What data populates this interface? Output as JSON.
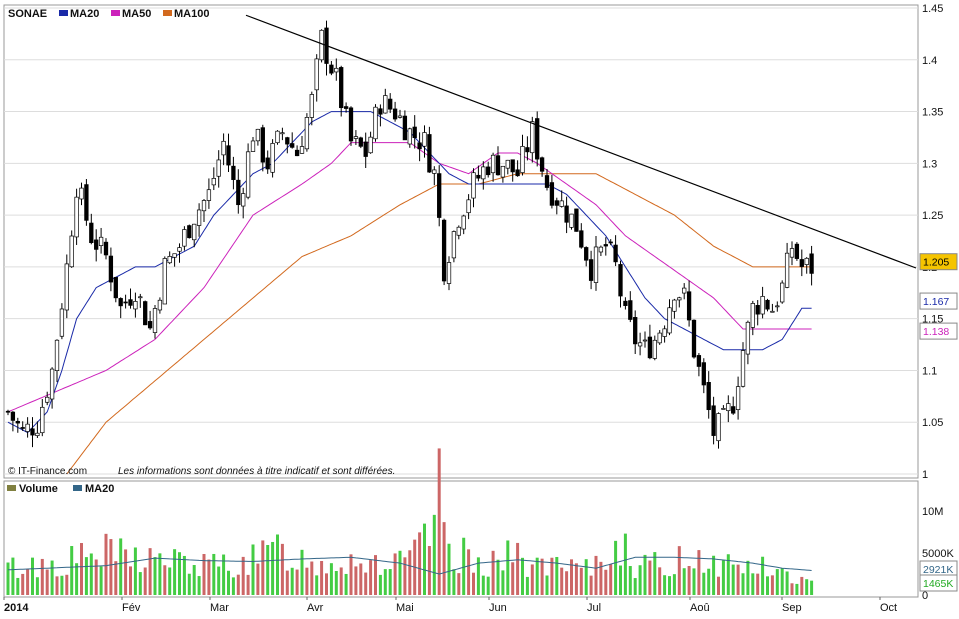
{
  "chart_data": [
    {
      "type": "candlestick",
      "title": "SONAE",
      "legend": [
        {
          "label": "SONAE",
          "color": "#000000"
        },
        {
          "label": "MA20",
          "color": "#1a2aa8"
        },
        {
          "label": "MA50",
          "color": "#cc22bb"
        },
        {
          "label": "MA100",
          "color": "#d2691e"
        }
      ],
      "y_ticks": [
        "1.45",
        "1.4",
        "1.35",
        "1.3",
        "1.25",
        "1.2",
        "1.15",
        "1.1",
        "1.05",
        "1"
      ],
      "ylim": [
        1.0,
        1.45
      ],
      "x_ticks": [
        "2014",
        "Fév",
        "Mar",
        "Avr",
        "Mai",
        "Jun",
        "Jul",
        "Aoû",
        "Sep",
        "Oct"
      ],
      "price_tags": [
        {
          "text": "1.205",
          "value": 1.205,
          "bg": "#f5c400",
          "fg": "#000000",
          "border": "#888888"
        },
        {
          "text": "1.167",
          "value": 1.167,
          "bg": "#ffffff",
          "fg": "#1a2aa8",
          "border": "#888888"
        },
        {
          "text": "1.138",
          "value": 1.138,
          "bg": "#ffffff",
          "fg": "#cc22bb",
          "border": "#888888"
        }
      ],
      "ohlc_anchors": [
        [
          0,
          1.06
        ],
        [
          3,
          1.04
        ],
        [
          6,
          1.05
        ],
        [
          9,
          1.1
        ],
        [
          12,
          1.2
        ],
        [
          14,
          1.28
        ],
        [
          17,
          1.23
        ],
        [
          20,
          1.21
        ],
        [
          23,
          1.16
        ],
        [
          26,
          1.18
        ],
        [
          29,
          1.14
        ],
        [
          32,
          1.2
        ],
        [
          35,
          1.22
        ],
        [
          38,
          1.25
        ],
        [
          41,
          1.27
        ],
        [
          44,
          1.32
        ],
        [
          47,
          1.26
        ],
        [
          50,
          1.33
        ],
        [
          53,
          1.3
        ],
        [
          56,
          1.33
        ],
        [
          59,
          1.31
        ],
        [
          62,
          1.36
        ],
        [
          64,
          1.42
        ],
        [
          67,
          1.38
        ],
        [
          70,
          1.32
        ],
        [
          73,
          1.31
        ],
        [
          76,
          1.36
        ],
        [
          79,
          1.35
        ],
        [
          82,
          1.33
        ],
        [
          85,
          1.32
        ],
        [
          87,
          1.29
        ],
        [
          89,
          1.2
        ],
        [
          92,
          1.25
        ],
        [
          95,
          1.28
        ],
        [
          98,
          1.3
        ],
        [
          101,
          1.3
        ],
        [
          104,
          1.29
        ],
        [
          107,
          1.33
        ],
        [
          110,
          1.28
        ],
        [
          113,
          1.26
        ],
        [
          116,
          1.24
        ],
        [
          119,
          1.2
        ],
        [
          122,
          1.22
        ],
        [
          124,
          1.2
        ],
        [
          126,
          1.15
        ],
        [
          128,
          1.13
        ],
        [
          130,
          1.12
        ],
        [
          132,
          1.13
        ],
        [
          134,
          1.15
        ],
        [
          136,
          1.18
        ],
        [
          138,
          1.17
        ],
        [
          140,
          1.12
        ],
        [
          142,
          1.08
        ],
        [
          144,
          1.04
        ],
        [
          146,
          1.05
        ],
        [
          148,
          1.07
        ],
        [
          150,
          1.12
        ],
        [
          152,
          1.16
        ],
        [
          154,
          1.17
        ],
        [
          156,
          1.16
        ],
        [
          158,
          1.18
        ],
        [
          160,
          1.22
        ],
        [
          162,
          1.2
        ],
        [
          164,
          1.2
        ]
      ],
      "ma20_anchors": [
        [
          0,
          1.05
        ],
        [
          4,
          1.04
        ],
        [
          8,
          1.06
        ],
        [
          11,
          1.1
        ],
        [
          14,
          1.15
        ],
        [
          18,
          1.18
        ],
        [
          22,
          1.19
        ],
        [
          26,
          1.2
        ],
        [
          30,
          1.2
        ],
        [
          34,
          1.21
        ],
        [
          38,
          1.22
        ],
        [
          42,
          1.25
        ],
        [
          46,
          1.27
        ],
        [
          50,
          1.29
        ],
        [
          54,
          1.3
        ],
        [
          58,
          1.32
        ],
        [
          62,
          1.34
        ],
        [
          66,
          1.35
        ],
        [
          70,
          1.35
        ],
        [
          74,
          1.35
        ],
        [
          78,
          1.34
        ],
        [
          82,
          1.33
        ],
        [
          86,
          1.31
        ],
        [
          90,
          1.29
        ],
        [
          94,
          1.28
        ],
        [
          98,
          1.28
        ],
        [
          102,
          1.28
        ],
        [
          106,
          1.28
        ],
        [
          110,
          1.28
        ],
        [
          114,
          1.27
        ],
        [
          118,
          1.25
        ],
        [
          122,
          1.23
        ],
        [
          126,
          1.2
        ],
        [
          130,
          1.17
        ],
        [
          134,
          1.15
        ],
        [
          138,
          1.14
        ],
        [
          142,
          1.13
        ],
        [
          146,
          1.12
        ],
        [
          150,
          1.12
        ],
        [
          154,
          1.12
        ],
        [
          158,
          1.13
        ],
        [
          162,
          1.16
        ]
      ],
      "ma50_anchors": [
        [
          0,
          1.06
        ],
        [
          10,
          1.08
        ],
        [
          20,
          1.1
        ],
        [
          30,
          1.13
        ],
        [
          40,
          1.18
        ],
        [
          50,
          1.25
        ],
        [
          60,
          1.28
        ],
        [
          66,
          1.3
        ],
        [
          70,
          1.32
        ],
        [
          76,
          1.32
        ],
        [
          82,
          1.32
        ],
        [
          88,
          1.3
        ],
        [
          94,
          1.29
        ],
        [
          100,
          1.31
        ],
        [
          104,
          1.31
        ],
        [
          108,
          1.3
        ],
        [
          114,
          1.28
        ],
        [
          120,
          1.26
        ],
        [
          126,
          1.23
        ],
        [
          132,
          1.21
        ],
        [
          138,
          1.19
        ],
        [
          144,
          1.17
        ],
        [
          150,
          1.14
        ],
        [
          156,
          1.14
        ],
        [
          162,
          1.14
        ]
      ],
      "ma100_anchors": [
        [
          12,
          1.0
        ],
        [
          20,
          1.05
        ],
        [
          30,
          1.09
        ],
        [
          40,
          1.13
        ],
        [
          50,
          1.17
        ],
        [
          60,
          1.21
        ],
        [
          70,
          1.23
        ],
        [
          80,
          1.26
        ],
        [
          88,
          1.28
        ],
        [
          96,
          1.28
        ],
        [
          104,
          1.29
        ],
        [
          112,
          1.29
        ],
        [
          120,
          1.29
        ],
        [
          128,
          1.27
        ],
        [
          136,
          1.25
        ],
        [
          144,
          1.22
        ],
        [
          152,
          1.2
        ],
        [
          162,
          1.2
        ]
      ],
      "trendline": [
        [
          1.443,
          0
        ],
        [
          1.168,
          180
        ]
      ]
    },
    {
      "type": "bar",
      "title": "Volume",
      "legend": [
        {
          "label": "Volume",
          "color": "#808040"
        },
        {
          "label": "MA20",
          "color": "#336688"
        }
      ],
      "y_ticks": [
        "10M",
        "5000K",
        "0"
      ],
      "ylim": [
        0,
        13000
      ],
      "unit": "K",
      "volume_anchors": [
        [
          0,
          3500
        ],
        [
          10,
          4200
        ],
        [
          20,
          5500
        ],
        [
          30,
          4800
        ],
        [
          40,
          3800
        ],
        [
          50,
          4500
        ],
        [
          55,
          6000
        ],
        [
          62,
          4200
        ],
        [
          70,
          4800
        ],
        [
          80,
          4000
        ],
        [
          85,
          6500
        ],
        [
          88,
          13000
        ],
        [
          90,
          5500
        ],
        [
          98,
          4500
        ],
        [
          104,
          5000
        ],
        [
          110,
          3500
        ],
        [
          118,
          3200
        ],
        [
          124,
          5800
        ],
        [
          126,
          9000
        ],
        [
          128,
          3800
        ],
        [
          134,
          3800
        ],
        [
          140,
          5500
        ],
        [
          144,
          4200
        ],
        [
          150,
          4000
        ],
        [
          154,
          3500
        ],
        [
          160,
          2400
        ],
        [
          164,
          1465
        ]
      ],
      "ma20_anchors": [
        [
          0,
          3000
        ],
        [
          20,
          3500
        ],
        [
          30,
          4400
        ],
        [
          40,
          4100
        ],
        [
          50,
          4000
        ],
        [
          60,
          4300
        ],
        [
          70,
          4500
        ],
        [
          80,
          3800
        ],
        [
          88,
          2500
        ],
        [
          96,
          3800
        ],
        [
          104,
          4200
        ],
        [
          112,
          3800
        ],
        [
          120,
          3200
        ],
        [
          128,
          4500
        ],
        [
          136,
          4500
        ],
        [
          144,
          4300
        ],
        [
          152,
          3800
        ],
        [
          158,
          3200
        ],
        [
          164,
          2921
        ]
      ],
      "price_tags": [
        {
          "text": "2921K",
          "value": 2921,
          "bg": "#ffffff",
          "fg": "#336688",
          "border": "#888888"
        },
        {
          "text": "1465K",
          "value": 1465,
          "bg": "#ffffff",
          "fg": "#22aa22",
          "border": "#888888"
        }
      ]
    }
  ],
  "footer": {
    "source": "© IT-Finance.com",
    "disclaimer": "Les informations sont données à titre indicatif et sont différées."
  },
  "colors": {
    "up": "#44cc44",
    "down": "#cc6666",
    "candle_up_fill": "#ffffff",
    "candle_down_fill": "#000000",
    "grid": "#dddddd",
    "axis": "#888888"
  }
}
